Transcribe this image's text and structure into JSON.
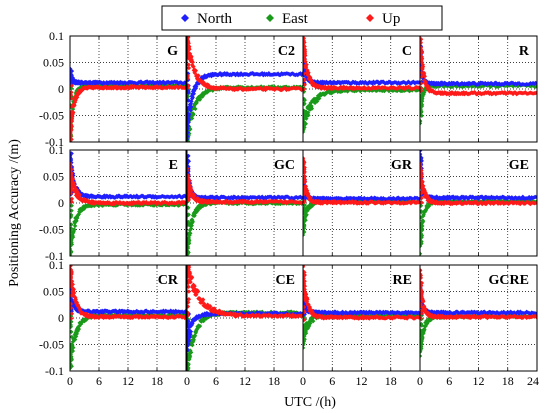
{
  "chart_data": {
    "type": "scatter",
    "ylabel": "Positioning Accuracy /(m)",
    "xlabel": "UTC /(h)",
    "legend": {
      "placement": "top-center",
      "entries": [
        {
          "name": "North",
          "color": "#1f1fff"
        },
        {
          "name": "East",
          "color": "#1a9a1a"
        },
        {
          "name": "Up",
          "color": "#ff1a1a"
        }
      ]
    },
    "xlim": [
      0,
      24
    ],
    "ylim": [
      -0.1,
      0.1
    ],
    "x_ticks": [
      "0",
      "6",
      "12",
      "18",
      "24"
    ],
    "y_ticks": [
      "0.1",
      "0.05",
      "0",
      "-0.05",
      "-0.1"
    ],
    "grid": true,
    "panels": [
      {
        "label": "G",
        "series": {
          "North": {
            "start": 0.03,
            "tau": 0.4,
            "final": 0.012
          },
          "East": {
            "start": -0.09,
            "tau": 0.7,
            "final": 0.006
          },
          "Up": {
            "start": -0.09,
            "tau": 0.8,
            "final": 0.003
          }
        }
      },
      {
        "label": "C2",
        "series": {
          "North": {
            "start": -0.08,
            "tau": 1.2,
            "final": 0.028
          },
          "East": {
            "start": -0.1,
            "tau": 1.6,
            "final": 0.003
          },
          "Up": {
            "start": 0.1,
            "tau": 1.5,
            "final": 0.0
          }
        }
      },
      {
        "label": "C",
        "series": {
          "North": {
            "start": 0.06,
            "tau": 0.6,
            "final": 0.012
          },
          "East": {
            "start": -0.07,
            "tau": 2.0,
            "final": -0.002
          },
          "Up": {
            "start": 0.1,
            "tau": 0.8,
            "final": 0.002
          }
        }
      },
      {
        "label": "R",
        "series": {
          "North": {
            "start": 0.08,
            "tau": 0.4,
            "final": 0.01
          },
          "East": {
            "start": -0.05,
            "tau": 0.5,
            "final": 0.006
          },
          "Up": {
            "start": 0.1,
            "tau": 0.7,
            "final": -0.008
          }
        }
      },
      {
        "label": "E",
        "series": {
          "North": {
            "start": 0.09,
            "tau": 0.8,
            "final": 0.012
          },
          "East": {
            "start": -0.1,
            "tau": 1.0,
            "final": -0.003
          },
          "Up": {
            "start": 0.06,
            "tau": 1.2,
            "final": 0.0
          }
        }
      },
      {
        "label": "GC",
        "series": {
          "North": {
            "start": 0.09,
            "tau": 0.5,
            "final": 0.01
          },
          "East": {
            "start": -0.1,
            "tau": 1.0,
            "final": 0.0
          },
          "Up": {
            "start": 0.05,
            "tau": 0.9,
            "final": 0.002
          }
        }
      },
      {
        "label": "GR",
        "series": {
          "North": {
            "start": 0.04,
            "tau": 0.4,
            "final": 0.008
          },
          "East": {
            "start": -0.05,
            "tau": 0.8,
            "final": 0.003
          },
          "Up": {
            "start": 0.08,
            "tau": 0.6,
            "final": 0.001
          }
        }
      },
      {
        "label": "GE",
        "series": {
          "North": {
            "start": 0.09,
            "tau": 0.4,
            "final": 0.01
          },
          "East": {
            "start": -0.08,
            "tau": 0.7,
            "final": 0.003
          },
          "Up": {
            "start": 0.06,
            "tau": 0.8,
            "final": 0.0
          }
        }
      },
      {
        "label": "CR",
        "series": {
          "North": {
            "start": 0.06,
            "tau": 0.6,
            "final": 0.012
          },
          "East": {
            "start": -0.09,
            "tau": 1.2,
            "final": 0.005
          },
          "Up": {
            "start": 0.1,
            "tau": 1.0,
            "final": 0.002
          }
        }
      },
      {
        "label": "CE",
        "series": {
          "North": {
            "start": -0.05,
            "tau": 1.0,
            "final": 0.008
          },
          "East": {
            "start": -0.1,
            "tau": 1.6,
            "final": 0.01
          },
          "Up": {
            "start": 0.1,
            "tau": 2.5,
            "final": 0.004
          }
        }
      },
      {
        "label": "RE",
        "series": {
          "North": {
            "start": 0.04,
            "tau": 0.6,
            "final": 0.01
          },
          "East": {
            "start": -0.04,
            "tau": 1.2,
            "final": 0.006
          },
          "Up": {
            "start": 0.09,
            "tau": 0.8,
            "final": 0.001
          }
        }
      },
      {
        "label": "GCRE",
        "series": {
          "North": {
            "start": 0.05,
            "tau": 0.5,
            "final": 0.01
          },
          "East": {
            "start": -0.06,
            "tau": 0.8,
            "final": 0.003
          },
          "Up": {
            "start": 0.08,
            "tau": 0.6,
            "final": 0.002
          }
        }
      }
    ]
  }
}
